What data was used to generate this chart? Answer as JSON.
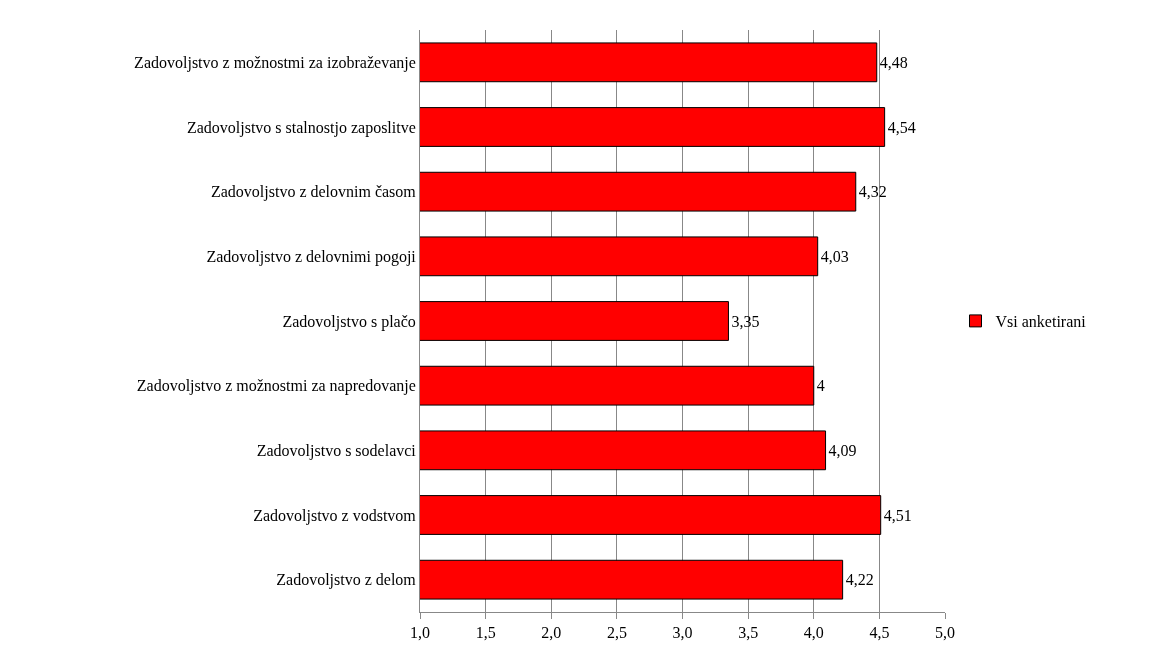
{
  "chart_data": {
    "type": "bar",
    "orientation": "horizontal",
    "categories": [
      "Zadovoljstvo z možnostmi za izobraževanje",
      "Zadovoljstvo s stalnostjo zaposlitve",
      "Zadovoljstvo z delovnim časom",
      "Zadovoljstvo z delovnimi pogoji",
      "Zadovoljstvo s plačo",
      "Zadovoljstvo z možnostmi za napredovanje",
      "Zadovoljstvo s sodelavci",
      "Zadovoljstvo z vodstvom",
      "Zadovoljstvo z delom"
    ],
    "series": [
      {
        "name": "Vsi anketirani",
        "color": "#ff0000",
        "values": [
          4.48,
          4.54,
          4.32,
          4.03,
          3.35,
          4,
          4.09,
          4.51,
          4.22
        ],
        "value_labels": [
          "4,48",
          "4,54",
          "4,32",
          "4,03",
          "3,35",
          "4",
          "4,09",
          "4,51",
          "4,22"
        ]
      }
    ],
    "xlim": [
      1,
      5
    ],
    "xticks": [
      {
        "value": 1,
        "label": "1,0"
      },
      {
        "value": 1.5,
        "label": "1,5"
      },
      {
        "value": 2,
        "label": "2,0"
      },
      {
        "value": 2.5,
        "label": "2,5"
      },
      {
        "value": 3,
        "label": "3,0"
      },
      {
        "value": 3.5,
        "label": "3,5"
      },
      {
        "value": 4,
        "label": "4,0"
      },
      {
        "value": 4.5,
        "label": "4,5"
      },
      {
        "value": 5,
        "label": "5,0"
      }
    ],
    "grid": "x",
    "legend": "right"
  }
}
